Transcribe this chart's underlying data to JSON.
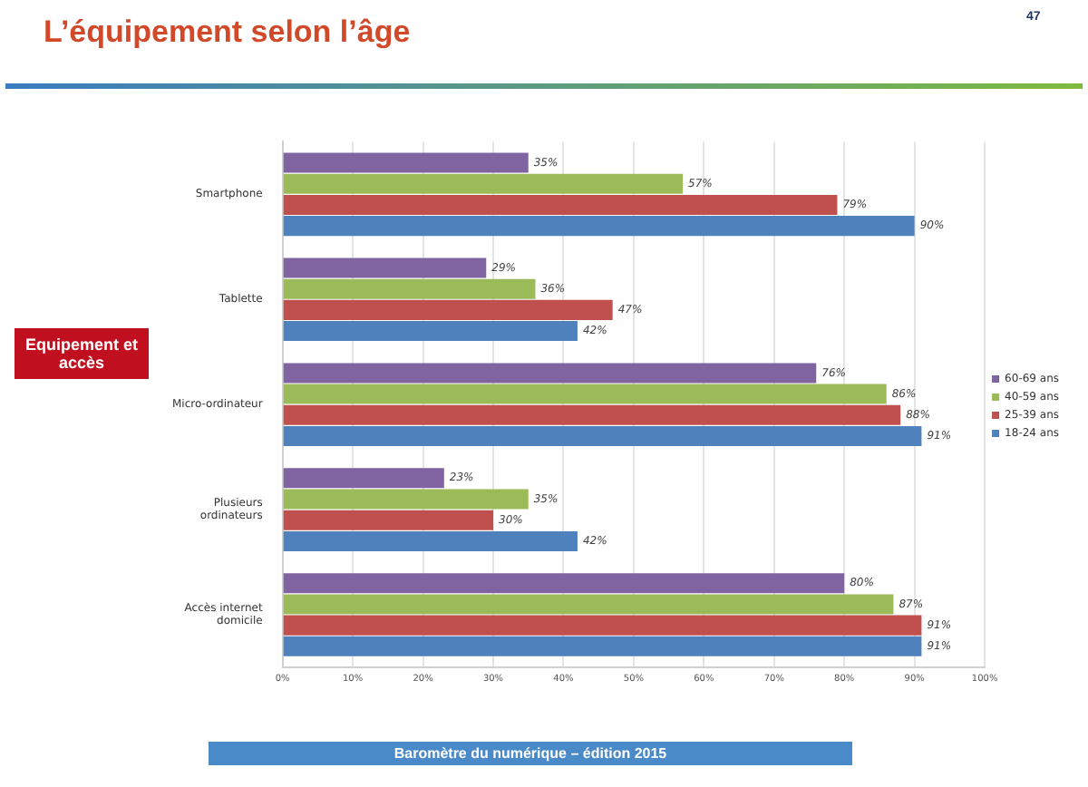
{
  "chart_data": {
    "type": "bar",
    "orientation": "horizontal",
    "title": "L’équipement selon l’âge",
    "categories": [
      "Smartphone",
      "Tablette",
      "Micro-ordinateur",
      "Plusieurs ordinateurs",
      "Accès internet domicile"
    ],
    "series": [
      {
        "name": "60-69 ans",
        "color": "#8064a2",
        "values": [
          35,
          29,
          76,
          23,
          80
        ],
        "value_labels": [
          "35%",
          "29%",
          "76%",
          "23%",
          "80%"
        ]
      },
      {
        "name": "40-59 ans",
        "color": "#9bbb59",
        "values": [
          57,
          36,
          86,
          35,
          87
        ],
        "value_labels": [
          "57%",
          "36%",
          "86%",
          "35%",
          "87%"
        ]
      },
      {
        "name": "25-39 ans",
        "color": "#c0504d",
        "values": [
          79,
          47,
          88,
          30,
          91
        ],
        "value_labels": [
          "79%",
          "47%",
          "88%",
          "30%",
          "91%"
        ]
      },
      {
        "name": "18-24 ans",
        "color": "#4f81bd",
        "values": [
          90,
          42,
          91,
          42,
          91
        ],
        "value_labels": [
          "90%",
          "42%",
          "91%",
          "42%",
          "91%"
        ]
      }
    ],
    "xlim": [
      0,
      100
    ],
    "xticks": [
      {
        "value": 0,
        "label": "0%"
      },
      {
        "value": 10,
        "label": "10%"
      },
      {
        "value": 20,
        "label": "20%"
      },
      {
        "value": 30,
        "label": "30%"
      },
      {
        "value": 40,
        "label": "40%"
      },
      {
        "value": 50,
        "label": "50%"
      },
      {
        "value": 60,
        "label": "60%"
      },
      {
        "value": 70,
        "label": "70%"
      },
      {
        "value": 80,
        "label": "80%"
      },
      {
        "value": 90,
        "label": "90%"
      },
      {
        "value": 100,
        "label": "100%"
      }
    ],
    "grid": "x",
    "legend": "right",
    "annotations": [
      "47",
      "Equipement et accès",
      "Baromètre du numérique – édition 2015"
    ]
  }
}
